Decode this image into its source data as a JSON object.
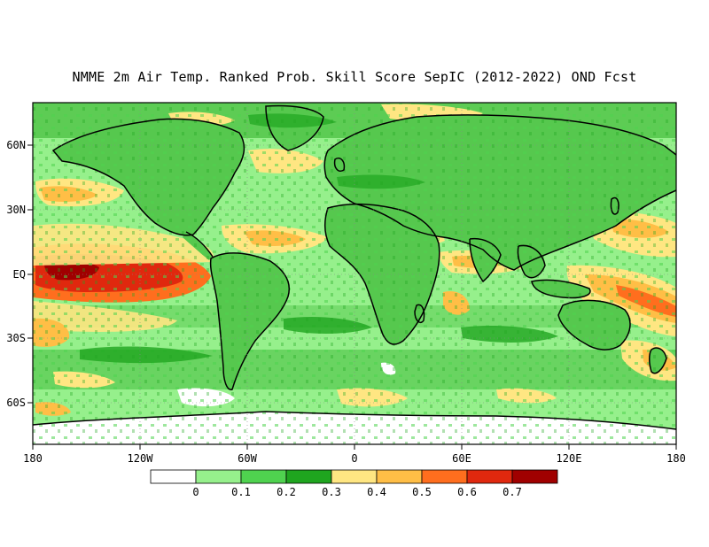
{
  "title": "NMME 2m Air Temp. Ranked Prob. Skill Score SepIC (2012-2022) OND Fcst",
  "lat_ticks": [
    "60N",
    "30N",
    "EQ",
    "30S",
    "60S"
  ],
  "lon_ticks": [
    "180",
    "120W",
    "60W",
    "0",
    "60E",
    "120E",
    "180"
  ],
  "colorbar": {
    "labels": [
      "0",
      "0.1",
      "0.2",
      "0.3",
      "0.4",
      "0.5",
      "0.6",
      "0.7"
    ],
    "colors": [
      "#ffffff",
      "#96f08c",
      "#4fd24f",
      "#1fa51f",
      "#ffe682",
      "#ffbe46",
      "#ff6e1e",
      "#e0280e",
      "#a00000"
    ]
  },
  "palette": {
    "ocean": "#96f08c",
    "land": "#56c84e",
    "skill_0_2_0_3": "#1fa51f",
    "skill_0_3_0_4": "#ffe682",
    "skill_0_4_0_5": "#ffbe46",
    "skill_0_5_0_6": "#ff6e1e",
    "skill_0_6_0_7": "#e0280e",
    "skill_gt_0_7": "#a00000",
    "skill_lt_0": "#ffffff"
  }
}
